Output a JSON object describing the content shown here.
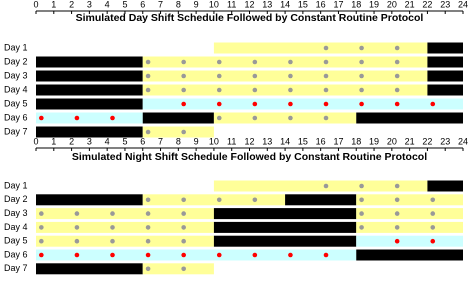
{
  "chart_data": [
    {
      "type": "schedule",
      "title": "Simulated Day Shift Schedule Followed by Constant Routine Protocol",
      "xlim": [
        0,
        24
      ],
      "xticks": [
        0,
        1,
        2,
        3,
        4,
        5,
        6,
        7,
        8,
        9,
        10,
        11,
        12,
        13,
        14,
        15,
        16,
        17,
        18,
        19,
        20,
        21,
        22,
        23,
        24
      ],
      "rows": [
        {
          "label": "Day 1",
          "segments": [
            {
              "start": 10,
              "end": 22,
              "color": "#ffff99"
            },
            {
              "start": 22,
              "end": 24,
              "color": "#000000"
            }
          ],
          "dots": [
            {
              "color": "#999999",
              "x": [
                16.3,
                18.3,
                20.3
              ]
            }
          ]
        },
        {
          "label": "Day 2",
          "segments": [
            {
              "start": 0,
              "end": 6,
              "color": "#000000"
            },
            {
              "start": 6,
              "end": 22,
              "color": "#ffff99"
            },
            {
              "start": 22,
              "end": 24,
              "color": "#000000"
            }
          ],
          "dots": [
            {
              "color": "#999999",
              "x": [
                6.3,
                8.3,
                10.3,
                12.3,
                14.3,
                16.3,
                18.3,
                20.3
              ]
            }
          ]
        },
        {
          "label": "Day 3",
          "segments": [
            {
              "start": 0,
              "end": 6,
              "color": "#000000"
            },
            {
              "start": 6,
              "end": 22,
              "color": "#ffff99"
            },
            {
              "start": 22,
              "end": 24,
              "color": "#000000"
            }
          ],
          "dots": [
            {
              "color": "#999999",
              "x": [
                6.3,
                8.3,
                10.3,
                12.3,
                14.3,
                16.3,
                18.3,
                20.3
              ]
            }
          ]
        },
        {
          "label": "Day 4",
          "segments": [
            {
              "start": 0,
              "end": 6,
              "color": "#000000"
            },
            {
              "start": 6,
              "end": 22,
              "color": "#ffff99"
            },
            {
              "start": 22,
              "end": 24,
              "color": "#000000"
            }
          ],
          "dots": [
            {
              "color": "#999999",
              "x": [
                6.3,
                8.3,
                10.3,
                12.3,
                14.3,
                16.3,
                18.3,
                20.3
              ]
            }
          ]
        },
        {
          "label": "Day 5",
          "segments": [
            {
              "start": 0,
              "end": 6,
              "color": "#000000"
            },
            {
              "start": 6,
              "end": 24,
              "color": "#ccffff"
            }
          ],
          "dots": [
            {
              "color": "#ff0000",
              "x": [
                8.3,
                10.3,
                12.3,
                14.3,
                16.3,
                18.3,
                20.3,
                22.3
              ]
            }
          ]
        },
        {
          "label": "Day 6",
          "segments": [
            {
              "start": 0,
              "end": 6,
              "color": "#ccffff"
            },
            {
              "start": 6,
              "end": 10,
              "color": "#000000"
            },
            {
              "start": 10,
              "end": 18,
              "color": "#ffff99"
            },
            {
              "start": 18,
              "end": 24,
              "color": "#000000"
            }
          ],
          "dots": [
            {
              "color": "#ff0000",
              "x": [
                0.3,
                2.3,
                4.3
              ]
            },
            {
              "color": "#999999",
              "x": [
                10.3,
                12.3,
                14.3,
                16.3
              ]
            }
          ]
        },
        {
          "label": "Day 7",
          "segments": [
            {
              "start": 0,
              "end": 6,
              "color": "#000000"
            },
            {
              "start": 6,
              "end": 10,
              "color": "#ffff99"
            }
          ],
          "dots": [
            {
              "color": "#999999",
              "x": [
                6.3,
                8.3
              ]
            }
          ]
        }
      ]
    },
    {
      "type": "schedule",
      "title": "Simulated Night Shift Schedule Followed by Constant Routine Protocol",
      "xlim": [
        0,
        24
      ],
      "xticks": [
        0,
        1,
        2,
        3,
        4,
        5,
        6,
        7,
        8,
        9,
        10,
        11,
        12,
        13,
        14,
        15,
        16,
        17,
        18,
        19,
        20,
        21,
        22,
        23,
        24
      ],
      "rows": [
        {
          "label": "Day 1",
          "segments": [
            {
              "start": 10,
              "end": 22,
              "color": "#ffff99"
            },
            {
              "start": 22,
              "end": 24,
              "color": "#000000"
            }
          ],
          "dots": [
            {
              "color": "#999999",
              "x": [
                16.3,
                18.3,
                20.3
              ]
            }
          ]
        },
        {
          "label": "Day 2",
          "segments": [
            {
              "start": 0,
              "end": 6,
              "color": "#000000"
            },
            {
              "start": 6,
              "end": 14,
              "color": "#ffff99"
            },
            {
              "start": 14,
              "end": 18,
              "color": "#000000"
            },
            {
              "start": 18,
              "end": 24,
              "color": "#ffff99"
            }
          ],
          "dots": [
            {
              "color": "#999999",
              "x": [
                6.3,
                8.3,
                10.3,
                12.3,
                18.3,
                20.3,
                22.3
              ]
            }
          ]
        },
        {
          "label": "Day 3",
          "segments": [
            {
              "start": 0,
              "end": 10,
              "color": "#ffff99"
            },
            {
              "start": 10,
              "end": 18,
              "color": "#000000"
            },
            {
              "start": 18,
              "end": 24,
              "color": "#ffff99"
            }
          ],
          "dots": [
            {
              "color": "#999999",
              "x": [
                0.3,
                2.3,
                4.3,
                6.3,
                8.3,
                18.3,
                20.3,
                22.3
              ]
            }
          ]
        },
        {
          "label": "Day 4",
          "segments": [
            {
              "start": 0,
              "end": 10,
              "color": "#ffff99"
            },
            {
              "start": 10,
              "end": 18,
              "color": "#000000"
            },
            {
              "start": 18,
              "end": 24,
              "color": "#ffff99"
            }
          ],
          "dots": [
            {
              "color": "#999999",
              "x": [
                0.3,
                2.3,
                4.3,
                6.3,
                8.3,
                18.3,
                20.3,
                22.3
              ]
            }
          ]
        },
        {
          "label": "Day 5",
          "segments": [
            {
              "start": 0,
              "end": 10,
              "color": "#ffff99"
            },
            {
              "start": 10,
              "end": 18,
              "color": "#000000"
            },
            {
              "start": 18,
              "end": 24,
              "color": "#ccffff"
            }
          ],
          "dots": [
            {
              "color": "#999999",
              "x": [
                0.3,
                2.3,
                4.3,
                6.3,
                8.3
              ]
            },
            {
              "color": "#ff0000",
              "x": [
                20.3,
                22.3
              ]
            }
          ]
        },
        {
          "label": "Day 6",
          "segments": [
            {
              "start": 0,
              "end": 18,
              "color": "#ccffff"
            },
            {
              "start": 18,
              "end": 24,
              "color": "#000000"
            }
          ],
          "dots": [
            {
              "color": "#ff0000",
              "x": [
                0.3,
                2.3,
                4.3,
                6.3,
                8.3,
                10.3,
                12.3,
                14.3,
                16.3
              ]
            }
          ]
        },
        {
          "label": "Day 7",
          "segments": [
            {
              "start": 0,
              "end": 6,
              "color": "#000000"
            },
            {
              "start": 6,
              "end": 10,
              "color": "#ffff99"
            }
          ],
          "dots": [
            {
              "color": "#999999",
              "x": [
                6.3,
                8.3
              ]
            }
          ]
        }
      ]
    }
  ]
}
